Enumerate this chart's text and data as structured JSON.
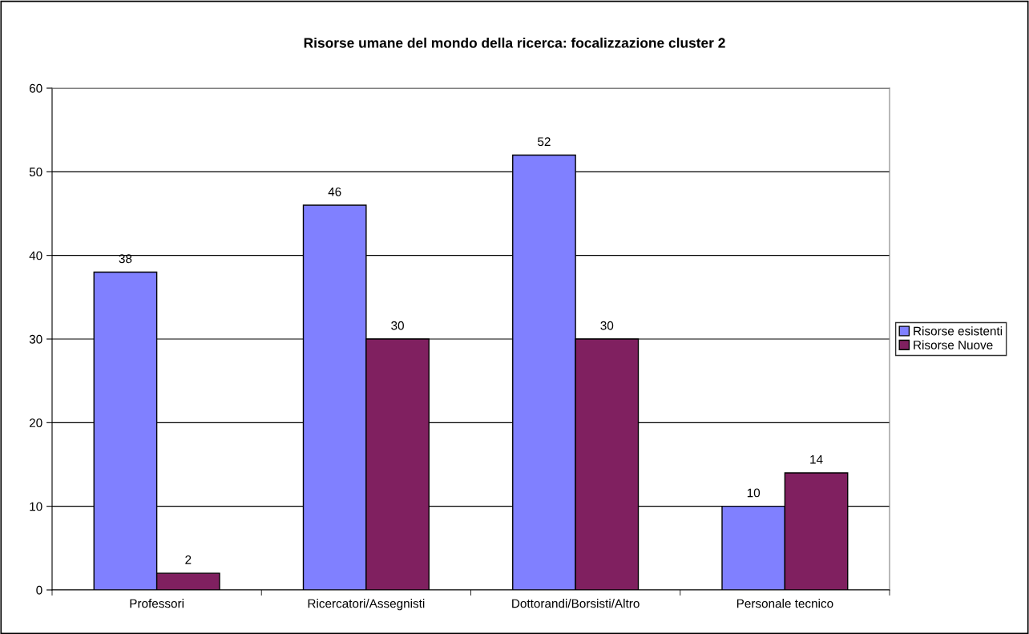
{
  "chart_data": {
    "type": "bar",
    "title": "Risorse umane del mondo della ricerca: focalizzazione cluster 2",
    "categories": [
      "Professori",
      "Ricercatori/Assegnisti",
      "Dottorandi/Borsisti/Altro",
      "Personale tecnico"
    ],
    "series": [
      {
        "name": "Risorse esistenti",
        "color": "#8080ff",
        "values": [
          38,
          46,
          52,
          10
        ]
      },
      {
        "name": "Risorse Nuove",
        "color": "#802060",
        "values": [
          2,
          30,
          30,
          14
        ]
      }
    ],
    "ylim": [
      0,
      60
    ],
    "yticks": [
      0,
      10,
      20,
      30,
      40,
      50,
      60
    ],
    "grid": "y",
    "legend": "right",
    "data_labels": true
  }
}
